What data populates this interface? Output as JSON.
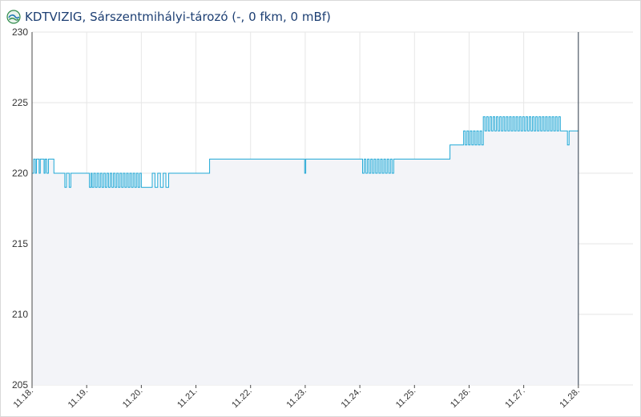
{
  "header": {
    "title": "KDTVIZIG, Sárszentmihályi-tározó (-, 0 fkm, 0 mBf)",
    "logo_icon": "kdtvizig-logo-icon"
  },
  "colors": {
    "line": "#1fa8d6",
    "fill": "#f3f4f8",
    "grid": "#e6e6e6",
    "axis": "#4a4a4a",
    "now_line": "#2f3d4c",
    "tick_text": "#333333",
    "title": "#1d3f73"
  },
  "chart_data": {
    "type": "line",
    "title": "KDTVIZIG, Sárszentmihályi-tározó (-, 0 fkm, 0 mBf)",
    "xlabel": "",
    "ylabel": "",
    "ylim": [
      205,
      230
    ],
    "y_ticks": [
      "205",
      "210",
      "215",
      "220",
      "225",
      "230"
    ],
    "x_ticks": [
      "11.18.",
      "11.19.",
      "11.20.",
      "11.21.",
      "11.22.",
      "11.23.",
      "11.24.",
      "11.25.",
      "11.26.",
      "11.27.",
      "11.28."
    ],
    "xlim": [
      0,
      11
    ],
    "now_marker_x": 10,
    "grid": true,
    "legend": "none",
    "series": [
      {
        "step": true,
        "x": [
          0,
          0.03,
          0.06,
          0.08,
          0.13,
          0.15,
          0.22,
          0.24,
          0.27,
          0.3,
          0.4,
          0.43,
          0.6,
          0.63,
          0.68,
          0.71,
          0.9,
          1.05,
          1.08,
          1.1,
          1.13,
          1.16,
          1.19,
          1.22,
          1.25,
          1.28,
          1.31,
          1.34,
          1.37,
          1.4,
          1.43,
          1.46,
          1.49,
          1.52,
          1.55,
          1.58,
          1.61,
          1.64,
          1.67,
          1.7,
          1.73,
          1.76,
          1.79,
          1.82,
          1.85,
          1.88,
          1.91,
          1.94,
          1.97,
          2.0,
          2.2,
          2.25,
          2.3,
          2.35,
          2.4,
          2.45,
          2.5,
          3.2,
          3.25,
          3.3,
          4.0,
          4.99,
          5.01,
          6.0,
          6.05,
          6.08,
          6.11,
          6.14,
          6.17,
          6.2,
          6.23,
          6.26,
          6.29,
          6.32,
          6.35,
          6.38,
          6.41,
          6.44,
          6.47,
          6.5,
          6.53,
          6.56,
          6.59,
          6.62,
          7.0,
          7.65,
          7.7,
          7.9,
          7.93,
          7.96,
          7.99,
          8.02,
          8.05,
          8.08,
          8.11,
          8.14,
          8.17,
          8.2,
          8.23,
          8.26,
          8.29,
          8.32,
          8.35,
          8.38,
          8.41,
          8.44,
          8.47,
          8.5,
          8.53,
          8.56,
          8.59,
          8.62,
          8.65,
          8.68,
          8.71,
          8.74,
          8.77,
          8.8,
          8.83,
          8.86,
          8.89,
          8.92,
          8.95,
          8.98,
          9.01,
          9.04,
          9.07,
          9.1,
          9.13,
          9.16,
          9.19,
          9.22,
          9.25,
          9.28,
          9.31,
          9.34,
          9.37,
          9.4,
          9.43,
          9.46,
          9.49,
          9.52,
          9.55,
          9.58,
          9.61,
          9.64,
          9.67,
          9.7,
          9.8,
          9.83,
          10.0
        ],
        "values": [
          220,
          221,
          220,
          221,
          220,
          221,
          220,
          221,
          220,
          221,
          220,
          220,
          219,
          220,
          219,
          220,
          220,
          219,
          220,
          219,
          220,
          219,
          220,
          219,
          220,
          219,
          220,
          219,
          220,
          219,
          220,
          219,
          220,
          219,
          220,
          219,
          220,
          219,
          220,
          219,
          220,
          219,
          220,
          219,
          220,
          219,
          220,
          219,
          220,
          219,
          220,
          219,
          220,
          219,
          220,
          219,
          220,
          220,
          221,
          221,
          221,
          220,
          221,
          221,
          220,
          221,
          220,
          221,
          220,
          221,
          220,
          221,
          220,
          221,
          220,
          221,
          220,
          221,
          220,
          221,
          220,
          221,
          220,
          221,
          221,
          222,
          222,
          223,
          222,
          223,
          222,
          223,
          222,
          223,
          222,
          223,
          222,
          223,
          222,
          224,
          223,
          224,
          223,
          224,
          223,
          224,
          223,
          224,
          223,
          224,
          223,
          224,
          223,
          224,
          223,
          224,
          223,
          224,
          223,
          224,
          223,
          224,
          223,
          224,
          223,
          224,
          223,
          224,
          223,
          224,
          223,
          224,
          223,
          224,
          223,
          224,
          223,
          224,
          223,
          224,
          223,
          224,
          223,
          224,
          223,
          224,
          223,
          223,
          222,
          223,
          223
        ]
      }
    ]
  }
}
